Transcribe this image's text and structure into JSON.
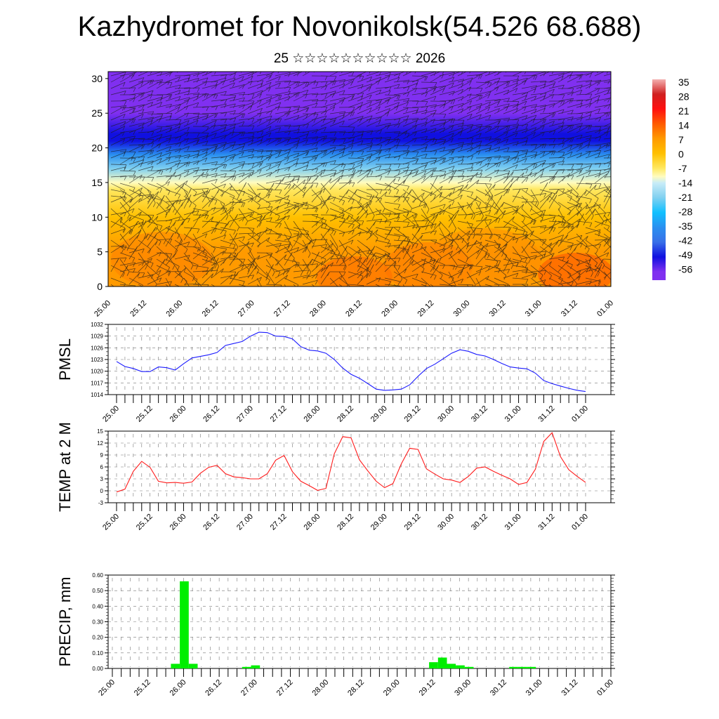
{
  "header": {
    "title": "Kazhydromet for Novonikolsk(54.526 68.688)",
    "subtitle": "25 ☆☆☆☆☆☆☆☆☆☆ 2026"
  },
  "x_tick_labels": [
    "25.00",
    "25.12",
    "26.00",
    "26.12",
    "27.00",
    "27.12",
    "28.00",
    "28.12",
    "29.00",
    "29.12",
    "30.00",
    "30.12",
    "31.00",
    "31.12",
    "01.00"
  ],
  "colors": {
    "pmsl_line": "#1a1aff",
    "temp_line": "#ff1a1a",
    "precip_bar": "#00ee00",
    "grid": "#555555"
  },
  "chart_data": [
    {
      "type": "heatmap",
      "name": "cross-section",
      "title": "",
      "ylabel": "",
      "ylim": [
        0,
        31
      ],
      "y_ticks": [
        0,
        5,
        10,
        15,
        20,
        25,
        30
      ],
      "x_ticks": [
        "25.00",
        "25.12",
        "26.00",
        "26.12",
        "27.00",
        "27.12",
        "28.00",
        "28.12",
        "29.00",
        "29.12",
        "30.00",
        "30.12",
        "31.00",
        "31.12",
        "01.00"
      ],
      "colorbar": {
        "labels": [
          "35",
          "28",
          "21",
          "14",
          "7",
          "0",
          "-7",
          "-14",
          "-21",
          "-28",
          "-35",
          "-42",
          "-49",
          "-56"
        ],
        "stops": [
          {
            "value": 35,
            "color": "#f4b0b0"
          },
          {
            "value": 28,
            "color": "#d02020"
          },
          {
            "value": 21,
            "color": "#ff1010"
          },
          {
            "value": 14,
            "color": "#ff5a00"
          },
          {
            "value": 7,
            "color": "#ff9a00"
          },
          {
            "value": 0,
            "color": "#ffc000"
          },
          {
            "value": -7,
            "color": "#ffe860"
          },
          {
            "value": -11,
            "color": "#fffcc0"
          },
          {
            "value": -14,
            "color": "#c8ecf8"
          },
          {
            "value": -21,
            "color": "#80d0f0"
          },
          {
            "value": -28,
            "color": "#10c0ff"
          },
          {
            "value": -35,
            "color": "#2a90f0"
          },
          {
            "value": -42,
            "color": "#3870e8"
          },
          {
            "value": -49,
            "color": "#1010e0"
          },
          {
            "value": -56,
            "color": "#8030f0"
          }
        ]
      },
      "levels": [
        {
          "level": 0,
          "temp": 9
        },
        {
          "level": 5,
          "temp": 6
        },
        {
          "level": 10,
          "temp": 2
        },
        {
          "level": 14,
          "temp": -6
        },
        {
          "level": 15,
          "temp": -12
        },
        {
          "level": 17,
          "temp": -22
        },
        {
          "level": 19,
          "temp": -33
        },
        {
          "level": 21,
          "temp": -48
        },
        {
          "level": 22,
          "temp": -52
        },
        {
          "level": 25,
          "temp": -57
        },
        {
          "level": 31,
          "temp": -58
        }
      ]
    },
    {
      "type": "line",
      "name": "pmsl",
      "ylabel": "PMSL",
      "ylim": [
        1014,
        1032
      ],
      "y_ticks": [
        1014,
        1017,
        1020,
        1023,
        1026,
        1029,
        1032
      ],
      "x_ticks": [
        "25.00",
        "25.12",
        "26.00",
        "26.12",
        "27.00",
        "27.12",
        "28.00",
        "28.12",
        "29.00",
        "29.12",
        "30.00",
        "30.12",
        "31.00",
        "31.12",
        "01.00"
      ],
      "x_hours_step": 3,
      "values": [
        1022.5,
        1021.2,
        1020.7,
        1019.9,
        1019.9,
        1021.1,
        1020.9,
        1020.3,
        1021.9,
        1023.4,
        1023.8,
        1024.2,
        1024.8,
        1026.6,
        1027.1,
        1027.6,
        1029.0,
        1030.0,
        1029.9,
        1029.0,
        1028.9,
        1028.3,
        1026.3,
        1025.4,
        1025.2,
        1024.6,
        1023.0,
        1020.8,
        1019.2,
        1018.2,
        1016.8,
        1015.4,
        1015.1,
        1015.2,
        1015.4,
        1016.5,
        1018.7,
        1020.7,
        1021.8,
        1023.2,
        1024.6,
        1025.5,
        1025.1,
        1024.3,
        1023.9,
        1023.0,
        1022.0,
        1021.1,
        1020.8,
        1020.6,
        1019.5,
        1017.6,
        1016.8,
        1016.2,
        1015.6,
        1015.1,
        1014.8
      ]
    },
    {
      "type": "line",
      "name": "temp",
      "ylabel": "TEMP at 2 M",
      "ylim": [
        -3,
        15
      ],
      "y_ticks": [
        -3,
        0,
        3,
        6,
        9,
        12,
        15
      ],
      "x_ticks": [
        "25.00",
        "25.12",
        "26.00",
        "26.12",
        "27.00",
        "27.12",
        "28.00",
        "28.12",
        "29.00",
        "29.12",
        "30.00",
        "30.12",
        "31.00",
        "31.12",
        "01.00"
      ],
      "x_hours_step": 3,
      "values": [
        -0.3,
        0.4,
        4.9,
        7.4,
        5.9,
        2.4,
        2.0,
        2.1,
        1.9,
        2.2,
        4.4,
        5.9,
        6.4,
        4.3,
        3.5,
        3.3,
        3.0,
        3.0,
        4.3,
        7.7,
        8.9,
        4.8,
        2.4,
        1.3,
        0.1,
        0.6,
        9.3,
        13.6,
        13.3,
        7.8,
        5.0,
        2.4,
        0.8,
        1.8,
        6.8,
        10.7,
        10.4,
        5.5,
        4.2,
        3.0,
        2.7,
        2.1,
        3.6,
        5.7,
        6.0,
        4.9,
        3.9,
        3.0,
        1.6,
        2.1,
        5.4,
        12.4,
        14.6,
        8.6,
        5.3,
        3.6,
        2.1
      ]
    },
    {
      "type": "bar",
      "name": "precip",
      "ylabel": "PRECIP, mm",
      "ylim": [
        0,
        0.6
      ],
      "y_ticks": [
        "0.00",
        "0.10",
        "0.20",
        "0.30",
        "0.40",
        "0.50",
        "0.60"
      ],
      "x_ticks": [
        "25.00",
        "25.12",
        "26.00",
        "26.12",
        "27.00",
        "27.12",
        "28.00",
        "28.12",
        "29.00",
        "29.12",
        "30.00",
        "30.12",
        "31.00",
        "31.12",
        "01.00"
      ],
      "x_hours_step": 3,
      "values": [
        0,
        0,
        0,
        0,
        0,
        0,
        0,
        0.03,
        0.56,
        0.03,
        0,
        0,
        0,
        0,
        0,
        0.01,
        0.02,
        0,
        0,
        0,
        0,
        0,
        0,
        0,
        0,
        0,
        0,
        0,
        0,
        0,
        0,
        0,
        0,
        0,
        0,
        0,
        0.04,
        0.07,
        0.03,
        0.02,
        0.01,
        0,
        0,
        0,
        0,
        0.01,
        0.01,
        0.01,
        0,
        0,
        0,
        0,
        0,
        0,
        0,
        0
      ]
    }
  ]
}
